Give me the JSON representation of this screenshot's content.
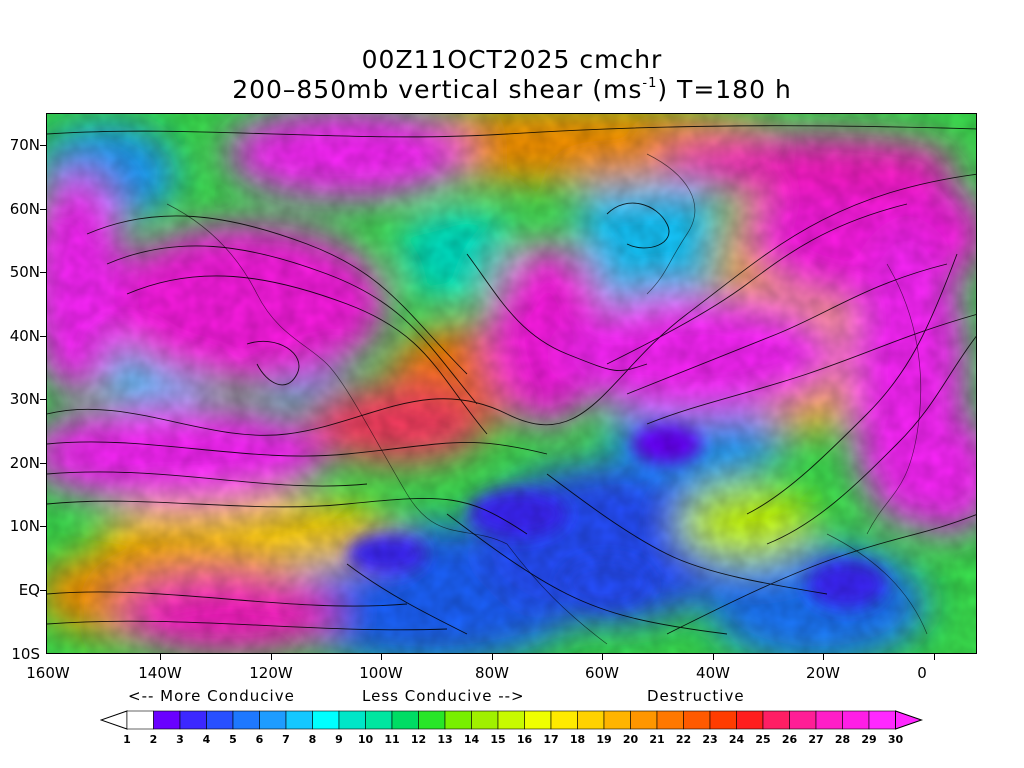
{
  "title_line1": "00Z11OCT2025 cmchr",
  "title_line2_pre": "200–850mb vertical shear (ms",
  "title_line2_sup": "-1",
  "title_line2_post": ") T=180 h",
  "lat_labels": [
    "70N",
    "60N",
    "50N",
    "40N",
    "30N",
    "20N",
    "10N",
    "EQ",
    "10S"
  ],
  "lon_labels": [
    "160W",
    "140W",
    "120W",
    "100W",
    "80W",
    "60W",
    "40W",
    "20W",
    "0"
  ],
  "caption_more": "<-- More Conducive",
  "caption_less": "Less Conducive -->",
  "caption_destructive": "Destructive",
  "colorbar_labels": [
    "1",
    "2",
    "3",
    "4",
    "5",
    "6",
    "7",
    "8",
    "9",
    "10",
    "11",
    "12",
    "13",
    "14",
    "15",
    "16",
    "17",
    "18",
    "19",
    "20",
    "21",
    "22",
    "23",
    "24",
    "25",
    "26",
    "27",
    "28",
    "29",
    "30"
  ],
  "colorbar_colors": [
    "#ffffff",
    "#6a00ff",
    "#3c28ff",
    "#2850ff",
    "#1e78ff",
    "#1e9cff",
    "#14c8ff",
    "#00ffff",
    "#00e6c8",
    "#00e6a0",
    "#00dc64",
    "#28e628",
    "#78f000",
    "#a0f000",
    "#c8fa00",
    "#f0ff00",
    "#ffeb00",
    "#ffd200",
    "#ffb400",
    "#ff9600",
    "#ff7800",
    "#ff5a00",
    "#ff3c00",
    "#ff1e1e",
    "#ff1e64",
    "#ff1e96",
    "#ff1ec8",
    "#ff1ee6",
    "#ff28ff"
  ],
  "units": "ms-1"
}
